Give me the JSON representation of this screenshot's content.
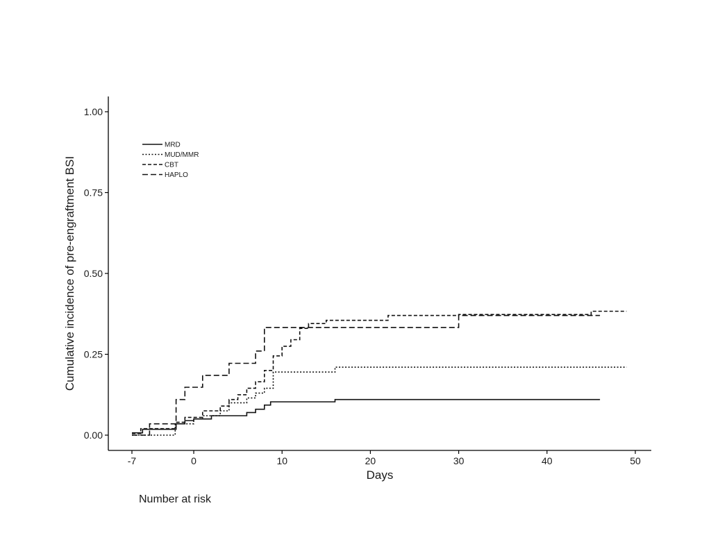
{
  "chart_data": {
    "type": "line",
    "step": true,
    "title": "",
    "xlabel": "Days",
    "ylabel": "Cumulative incidence of pre-engraftment BSI",
    "xlim": [
      -7,
      52
    ],
    "ylim": [
      -0.045,
      1.05
    ],
    "xticks": [
      -7,
      0,
      10,
      20,
      30,
      40,
      50
    ],
    "yticks": [
      0.0,
      0.25,
      0.5,
      0.75,
      1.0
    ],
    "ytick_labels": [
      "0.00",
      "0.25",
      "0.50",
      "0.75",
      "1.00"
    ],
    "grid": false,
    "legend_position": "top-left",
    "series": [
      {
        "name": "MRD",
        "dash": "solid",
        "points": [
          [
            -7,
            0.007
          ],
          [
            -5.8,
            0.007
          ],
          [
            -5.8,
            0.018
          ],
          [
            -2,
            0.018
          ],
          [
            -2,
            0.035
          ],
          [
            -1,
            0.035
          ],
          [
            -1,
            0.045
          ],
          [
            0,
            0.045
          ],
          [
            0,
            0.05
          ],
          [
            2,
            0.05
          ],
          [
            2,
            0.06
          ],
          [
            6,
            0.06
          ],
          [
            6,
            0.07
          ],
          [
            7,
            0.07
          ],
          [
            7,
            0.08
          ],
          [
            8,
            0.08
          ],
          [
            8,
            0.093
          ],
          [
            8.7,
            0.093
          ],
          [
            8.7,
            0.103
          ],
          [
            16,
            0.103
          ],
          [
            16,
            0.11
          ],
          [
            46,
            0.11
          ]
        ]
      },
      {
        "name": "MUD/MMR",
        "dash": "dotted",
        "points": [
          [
            -7,
            0.0
          ],
          [
            -4,
            0.0
          ],
          [
            -4,
            0.0
          ],
          [
            -2.1,
            0.0
          ],
          [
            -2.1,
            0.035
          ],
          [
            0,
            0.035
          ],
          [
            0,
            0.05
          ],
          [
            1,
            0.05
          ],
          [
            1,
            0.06
          ],
          [
            3,
            0.06
          ],
          [
            3,
            0.075
          ],
          [
            4,
            0.075
          ],
          [
            4,
            0.1
          ],
          [
            6,
            0.1
          ],
          [
            6,
            0.115
          ],
          [
            7,
            0.115
          ],
          [
            7,
            0.13
          ],
          [
            8,
            0.13
          ],
          [
            8,
            0.145
          ],
          [
            9,
            0.145
          ],
          [
            9,
            0.195
          ],
          [
            16,
            0.195
          ],
          [
            16,
            0.21
          ],
          [
            49,
            0.21
          ]
        ]
      },
      {
        "name": "CBT",
        "dash": "dashed-short",
        "points": [
          [
            -7,
            0.005
          ],
          [
            -6,
            0.005
          ],
          [
            -6,
            0.02
          ],
          [
            -2,
            0.02
          ],
          [
            -2,
            0.04
          ],
          [
            -1,
            0.04
          ],
          [
            -1,
            0.055
          ],
          [
            1,
            0.055
          ],
          [
            1,
            0.075
          ],
          [
            3,
            0.075
          ],
          [
            3,
            0.09
          ],
          [
            4,
            0.09
          ],
          [
            4,
            0.11
          ],
          [
            5,
            0.11
          ],
          [
            5,
            0.125
          ],
          [
            6,
            0.125
          ],
          [
            6,
            0.145
          ],
          [
            7,
            0.145
          ],
          [
            7,
            0.165
          ],
          [
            8,
            0.165
          ],
          [
            8,
            0.2
          ],
          [
            9,
            0.2
          ],
          [
            9,
            0.245
          ],
          [
            10,
            0.245
          ],
          [
            10,
            0.275
          ],
          [
            11,
            0.275
          ],
          [
            11,
            0.295
          ],
          [
            12,
            0.295
          ],
          [
            12,
            0.33
          ],
          [
            13,
            0.33
          ],
          [
            13,
            0.345
          ],
          [
            15,
            0.345
          ],
          [
            15,
            0.355
          ],
          [
            22,
            0.355
          ],
          [
            22,
            0.37
          ],
          [
            30,
            0.37
          ],
          [
            30,
            0.373
          ],
          [
            45,
            0.373
          ],
          [
            45,
            0.383
          ],
          [
            49,
            0.383
          ]
        ]
      },
      {
        "name": "HAPLO",
        "dash": "dashed-long",
        "points": [
          [
            -7,
            0.0
          ],
          [
            -5,
            0.0
          ],
          [
            -5,
            0.035
          ],
          [
            -2,
            0.035
          ],
          [
            -2,
            0.11
          ],
          [
            -1,
            0.11
          ],
          [
            -1,
            0.148
          ],
          [
            1,
            0.148
          ],
          [
            1,
            0.185
          ],
          [
            4,
            0.185
          ],
          [
            4,
            0.222
          ],
          [
            7,
            0.222
          ],
          [
            7,
            0.26
          ],
          [
            8,
            0.26
          ],
          [
            8,
            0.333
          ],
          [
            30,
            0.333
          ],
          [
            30,
            0.37
          ],
          [
            46,
            0.37
          ]
        ]
      }
    ]
  },
  "cut_off_text": "Number at risk"
}
